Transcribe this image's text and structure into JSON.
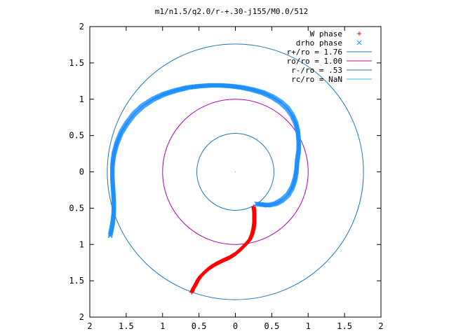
{
  "chart_data": {
    "type": "scatter",
    "title": "m1/n1.5/q2.0/r-+.30-j155/M0.0/512",
    "xlim": [
      -2,
      2
    ],
    "ylim": [
      -2,
      2
    ],
    "x_ticks": [
      -2,
      -1.5,
      -1,
      -0.5,
      0,
      0.5,
      1,
      1.5,
      2
    ],
    "y_ticks": [
      -2,
      -1.5,
      -1,
      -0.5,
      0,
      0.5,
      1,
      1.5,
      2
    ],
    "x_tick_labels": [
      "2",
      "1.5",
      "1",
      "0.5",
      "0",
      "0.5",
      "1",
      "1.5",
      "2"
    ],
    "y_tick_labels": [
      "2",
      "1.5",
      "1",
      "0.5",
      "0",
      "0.5",
      "1",
      "1.5",
      "2"
    ],
    "grid": false,
    "legend_position": "top-right",
    "legend": [
      {
        "label": "W phase",
        "kind": "marker",
        "marker": "+",
        "color": "#ff0000"
      },
      {
        "label": "drho phase",
        "kind": "marker",
        "marker": "x",
        "color": "#1e90ff"
      },
      {
        "label": "r+/ro = 1.76",
        "kind": "line",
        "color": "#1f77b4"
      },
      {
        "label": "ro/ro = 1.00",
        "kind": "line",
        "color": "#b000b0"
      },
      {
        "label": "r-/ro = .53",
        "kind": "line",
        "color": "#1f77b4"
      },
      {
        "label": "rc/ro = NaN",
        "kind": "line",
        "color": "#20c0e0"
      }
    ],
    "circles": [
      {
        "name": "r+/ro",
        "radius": 1.76,
        "color": "#1f77b4"
      },
      {
        "name": "ro/ro",
        "radius": 1.0,
        "color": "#b000b0"
      },
      {
        "name": "r-/ro",
        "radius": 0.53,
        "color": "#1f77b4"
      }
    ],
    "series": [
      {
        "name": "W phase",
        "marker": "+",
        "color": "#ff0000",
        "points": [
          [
            0.25,
            -0.48
          ],
          [
            0.26,
            -0.55
          ],
          [
            0.26,
            -0.62
          ],
          [
            0.26,
            -0.7
          ],
          [
            0.25,
            -0.78
          ],
          [
            0.23,
            -0.86
          ],
          [
            0.2,
            -0.93
          ],
          [
            0.14,
            -1.0
          ],
          [
            0.07,
            -1.07
          ],
          [
            0.0,
            -1.13
          ],
          [
            -0.08,
            -1.18
          ],
          [
            -0.17,
            -1.22
          ],
          [
            -0.27,
            -1.27
          ],
          [
            -0.35,
            -1.32
          ],
          [
            -0.42,
            -1.38
          ],
          [
            -0.48,
            -1.44
          ],
          [
            -0.52,
            -1.5
          ],
          [
            -0.55,
            -1.56
          ],
          [
            -0.58,
            -1.61
          ],
          [
            -0.6,
            -1.66
          ]
        ]
      },
      {
        "name": "drho phase",
        "marker": "x",
        "color": "#1e90ff",
        "points": [
          [
            -1.72,
            -0.88
          ],
          [
            -1.7,
            -0.78
          ],
          [
            -1.68,
            -0.66
          ],
          [
            -1.67,
            -0.54
          ],
          [
            -1.67,
            -0.4
          ],
          [
            -1.68,
            -0.24
          ],
          [
            -1.69,
            -0.08
          ],
          [
            -1.69,
            0.08
          ],
          [
            -1.67,
            0.24
          ],
          [
            -1.63,
            0.39
          ],
          [
            -1.57,
            0.54
          ],
          [
            -1.49,
            0.67
          ],
          [
            -1.39,
            0.8
          ],
          [
            -1.27,
            0.91
          ],
          [
            -1.13,
            1.0
          ],
          [
            -0.98,
            1.07
          ],
          [
            -0.82,
            1.12
          ],
          [
            -0.66,
            1.16
          ],
          [
            -0.5,
            1.18
          ],
          [
            -0.35,
            1.19
          ],
          [
            -0.2,
            1.19
          ],
          [
            -0.05,
            1.18
          ],
          [
            0.1,
            1.16
          ],
          [
            0.24,
            1.13
          ],
          [
            0.38,
            1.09
          ],
          [
            0.51,
            1.03
          ],
          [
            0.62,
            0.96
          ],
          [
            0.71,
            0.88
          ],
          [
            0.78,
            0.78
          ],
          [
            0.83,
            0.67
          ],
          [
            0.86,
            0.55
          ],
          [
            0.87,
            0.42
          ],
          [
            0.87,
            0.29
          ],
          [
            0.85,
            0.16
          ],
          [
            0.84,
            0.02
          ],
          [
            0.82,
            -0.1
          ],
          [
            0.78,
            -0.22
          ],
          [
            0.72,
            -0.32
          ],
          [
            0.64,
            -0.39
          ],
          [
            0.55,
            -0.44
          ],
          [
            0.45,
            -0.46
          ],
          [
            0.36,
            -0.45
          ],
          [
            0.29,
            -0.44
          ]
        ]
      }
    ]
  }
}
